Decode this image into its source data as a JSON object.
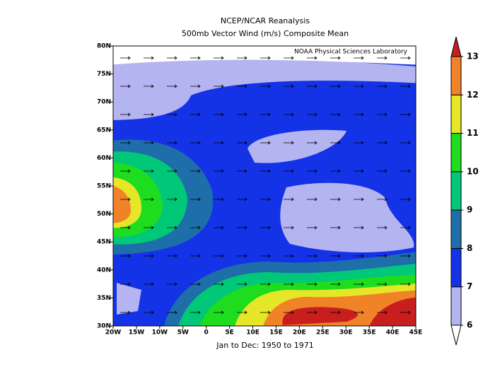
{
  "title": "NCEP/NCAR Reanalysis",
  "subtitle": "500mb Vector Wind (m/s) Composite Mean",
  "credit": "NOAA Physical Sciences Laboratory",
  "period": "Jan to Dec: 1950 to 1971",
  "map": {
    "xlim": [
      -20,
      45
    ],
    "ylim": [
      30,
      80
    ],
    "xticks": [
      {
        "value": -20,
        "label": "20W"
      },
      {
        "value": -15,
        "label": "15W"
      },
      {
        "value": -10,
        "label": "10W"
      },
      {
        "value": -5,
        "label": "5W"
      },
      0,
      {
        "value": 5,
        "label": "5E"
      },
      {
        "value": 10,
        "label": "10E"
      },
      {
        "value": 15,
        "label": "15E"
      },
      {
        "value": 20,
        "label": "20E"
      },
      {
        "value": 25,
        "label": "25E"
      },
      {
        "value": 30,
        "label": "30E"
      },
      {
        "value": 35,
        "label": "35E"
      },
      {
        "value": 40,
        "label": "40E"
      },
      {
        "value": 45,
        "label": "45E"
      }
    ],
    "yticks": [
      {
        "value": 30,
        "label": "30N"
      },
      {
        "value": 35,
        "label": "35N"
      },
      {
        "value": 40,
        "label": "40N"
      },
      {
        "value": 45,
        "label": "45N"
      },
      {
        "value": 50,
        "label": "50N"
      },
      {
        "value": 55,
        "label": "55N"
      },
      {
        "value": 60,
        "label": "60N"
      },
      {
        "value": 65,
        "label": "65N"
      },
      {
        "value": 70,
        "label": "70N"
      },
      {
        "value": 75,
        "label": "75N"
      },
      {
        "value": 80,
        "label": "80N"
      }
    ]
  },
  "colorbar": {
    "levels": [
      6,
      7,
      8,
      9,
      10,
      11,
      12,
      13
    ],
    "colors": [
      "#ffffff",
      "#b4b4f0",
      "#1432e6",
      "#1e6eaa",
      "#00c878",
      "#1edc1e",
      "#e6e628",
      "#f08228",
      "#c81e1e"
    ]
  }
}
